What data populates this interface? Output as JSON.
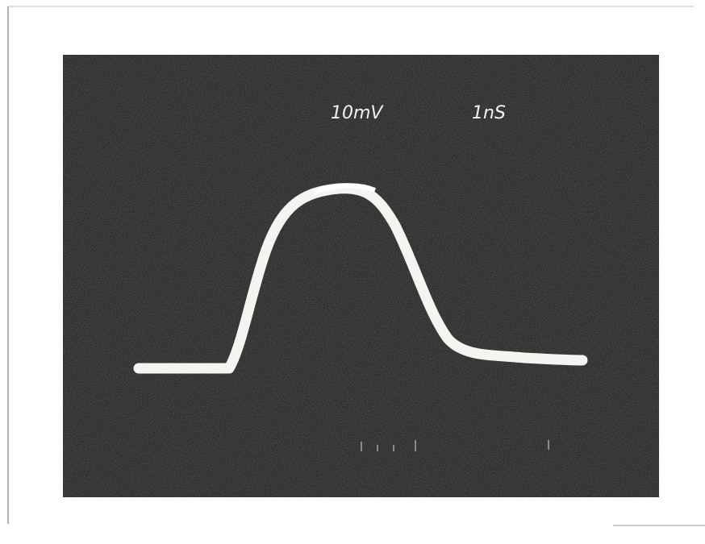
{
  "scope": {
    "volts_per_div": "10mV",
    "time_per_div": "1nS"
  }
}
